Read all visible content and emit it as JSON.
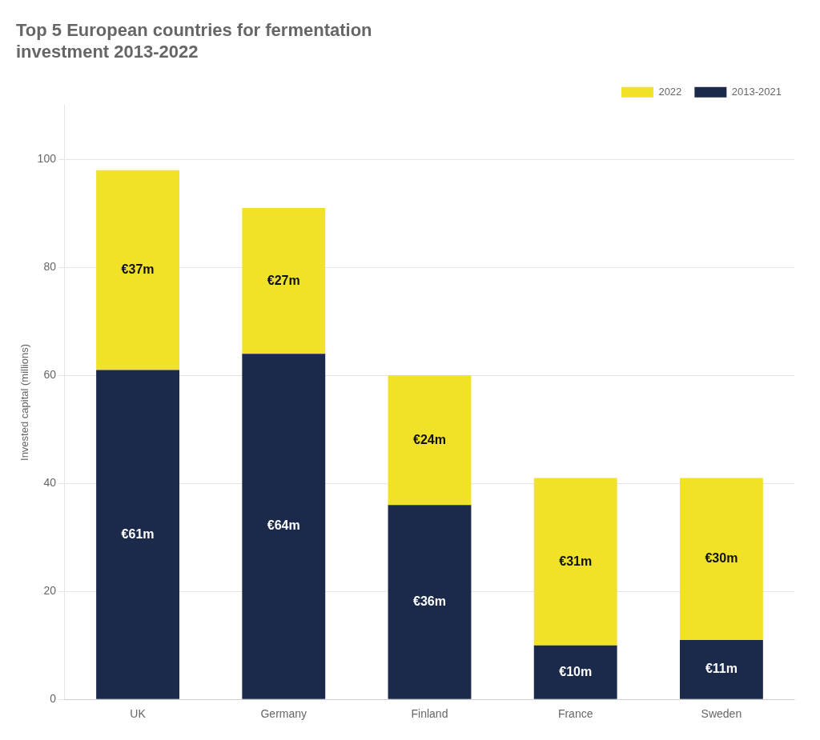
{
  "chart_data": {
    "type": "bar",
    "title": "Top 5 European countries for fermentation\ninvestment 2013-2022",
    "ylabel": "Invested capital (millions)",
    "categories": [
      "UK",
      "Germany",
      "Finland",
      "France",
      "Sweden"
    ],
    "series": [
      {
        "name": "2013-2021",
        "color": "#1b2a4a",
        "values": [
          61,
          64,
          36,
          10,
          11
        ],
        "value_labels": [
          "€61m",
          "€64m",
          "€36m",
          "€10m",
          "€11m"
        ]
      },
      {
        "name": "2022",
        "color": "#f0e227",
        "values": [
          37,
          27,
          24,
          31,
          30
        ],
        "value_labels": [
          "€37m",
          "€27m",
          "€24m",
          "€31m",
          "€30m"
        ]
      }
    ],
    "stacked": true,
    "data_labels": true,
    "ylim": [
      0,
      110
    ],
    "yticks": [
      0,
      20,
      40,
      60,
      80,
      100
    ],
    "grid": true,
    "legend": "upper right"
  }
}
